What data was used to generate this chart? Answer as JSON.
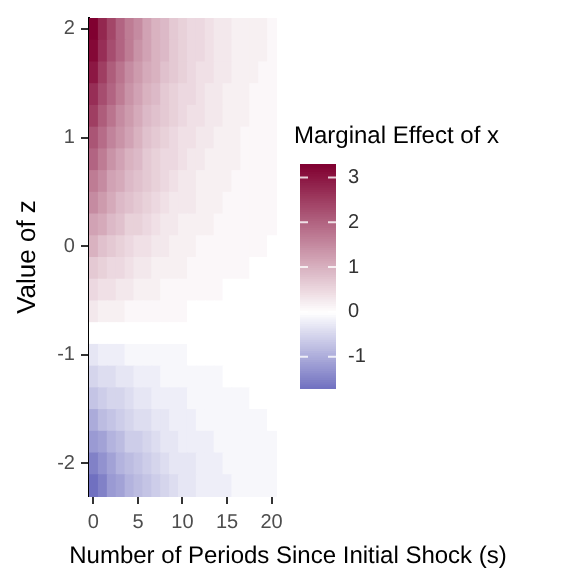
{
  "chart_data": {
    "type": "heatmap",
    "xlabel": "Number of Periods Since Initial Shock (s)",
    "ylabel": "Value of z",
    "clabel": "Marginal Effect of x",
    "categories": [
      "0",
      null,
      null,
      null,
      null,
      "5",
      null,
      null,
      null,
      null,
      "10",
      null,
      null,
      null,
      null,
      "15",
      null,
      null,
      null,
      null,
      "20"
    ],
    "y_categories": [
      "2",
      null,
      null,
      null,
      null,
      "1",
      null,
      null,
      null,
      null,
      "0",
      null,
      null,
      null,
      null,
      "-1",
      null,
      null,
      null,
      null,
      "-2",
      null
    ],
    "cells": [
      [
        3.3,
        2.8,
        2.4,
        2.0,
        1.7,
        1.5,
        1.2,
        1.0,
        0.9,
        0.7,
        0.6,
        0.5,
        0.5,
        0.4,
        0.3,
        0.3,
        0.2,
        0.2,
        0.2,
        0.2,
        0.1
      ],
      [
        3.2,
        2.7,
        2.3,
        2.0,
        1.7,
        1.4,
        1.2,
        1.0,
        0.9,
        0.7,
        0.6,
        0.5,
        0.5,
        0.4,
        0.3,
        0.3,
        0.2,
        0.2,
        0.2,
        0.2,
        0.1
      ],
      [
        3.0,
        2.5,
        2.1,
        1.8,
        1.5,
        1.3,
        1.1,
        1.0,
        0.8,
        0.7,
        0.6,
        0.5,
        0.4,
        0.4,
        0.3,
        0.3,
        0.2,
        0.2,
        0.2,
        0.1,
        0.1
      ],
      [
        2.7,
        2.3,
        2.0,
        1.7,
        1.4,
        1.2,
        1.0,
        0.9,
        0.7,
        0.6,
        0.5,
        0.5,
        0.4,
        0.3,
        0.3,
        0.2,
        0.2,
        0.2,
        0.1,
        0.1,
        0.1
      ],
      [
        2.5,
        2.1,
        1.8,
        1.5,
        1.3,
        1.1,
        0.9,
        0.8,
        0.7,
        0.6,
        0.5,
        0.4,
        0.4,
        0.3,
        0.3,
        0.2,
        0.2,
        0.2,
        0.1,
        0.1,
        0.1
      ],
      [
        2.2,
        1.9,
        1.6,
        1.4,
        1.2,
        1.0,
        0.8,
        0.7,
        0.6,
        0.5,
        0.4,
        0.4,
        0.3,
        0.3,
        0.2,
        0.2,
        0.2,
        0.1,
        0.1,
        0.1,
        0.1
      ],
      [
        2.0,
        1.7,
        1.4,
        1.2,
        1.0,
        0.9,
        0.7,
        0.6,
        0.5,
        0.5,
        0.4,
        0.3,
        0.3,
        0.2,
        0.2,
        0.2,
        0.2,
        0.1,
        0.1,
        0.1,
        0.1
      ],
      [
        1.7,
        1.5,
        1.2,
        1.1,
        0.9,
        0.8,
        0.7,
        0.6,
        0.5,
        0.4,
        0.3,
        0.3,
        0.2,
        0.2,
        0.2,
        0.2,
        0.1,
        0.1,
        0.1,
        0.1,
        0.1
      ],
      [
        1.5,
        1.3,
        1.1,
        0.9,
        0.8,
        0.7,
        0.6,
        0.5,
        0.4,
        0.3,
        0.3,
        0.3,
        0.2,
        0.2,
        0.2,
        0.1,
        0.1,
        0.1,
        0.1,
        0.1,
        0.1
      ],
      [
        1.2,
        1.1,
        0.9,
        0.8,
        0.6,
        0.6,
        0.5,
        0.4,
        0.3,
        0.3,
        0.2,
        0.2,
        0.2,
        0.2,
        0.1,
        0.1,
        0.1,
        0.1,
        0.1,
        0.1,
        0.1
      ],
      [
        1.0,
        0.8,
        0.7,
        0.6,
        0.5,
        0.4,
        0.4,
        0.3,
        0.3,
        0.2,
        0.2,
        0.2,
        0.1,
        0.1,
        0.1,
        0.1,
        0.1,
        0.1,
        0.1,
        0.1,
        0.0
      ],
      [
        0.7,
        0.6,
        0.5,
        0.5,
        0.4,
        0.3,
        0.3,
        0.2,
        0.2,
        0.2,
        0.2,
        0.1,
        0.1,
        0.1,
        0.1,
        0.1,
        0.1,
        0.1,
        0.0,
        0.0,
        0.0
      ],
      [
        0.5,
        0.4,
        0.4,
        0.3,
        0.3,
        0.2,
        0.2,
        0.2,
        0.1,
        0.1,
        0.1,
        0.1,
        0.1,
        0.1,
        0.1,
        0.0,
        0.0,
        0.0,
        0.0,
        0.0,
        0.0
      ],
      [
        0.3,
        0.2,
        0.2,
        0.2,
        0.1,
        0.1,
        0.1,
        0.1,
        0.1,
        0.1,
        0.1,
        0.0,
        0.0,
        0.0,
        0.0,
        0.0,
        0.0,
        0.0,
        0.0,
        0.0,
        0.0
      ],
      [
        0.0,
        0.0,
        0.0,
        0.0,
        0.0,
        0.0,
        0.0,
        0.0,
        0.0,
        0.0,
        0.0,
        0.0,
        0.0,
        0.0,
        0.0,
        0.0,
        0.0,
        0.0,
        0.0,
        0.0,
        0.0
      ],
      [
        -0.3,
        -0.2,
        -0.2,
        -0.2,
        -0.1,
        -0.1,
        -0.1,
        -0.1,
        -0.1,
        -0.1,
        -0.1,
        0.0,
        0.0,
        0.0,
        0.0,
        0.0,
        0.0,
        0.0,
        0.0,
        0.0,
        0.0
      ],
      [
        -0.5,
        -0.4,
        -0.4,
        -0.3,
        -0.3,
        -0.2,
        -0.2,
        -0.2,
        -0.1,
        -0.1,
        -0.1,
        -0.1,
        -0.1,
        -0.1,
        -0.1,
        0.0,
        0.0,
        0.0,
        0.0,
        0.0,
        0.0
      ],
      [
        -0.7,
        -0.6,
        -0.5,
        -0.5,
        -0.4,
        -0.3,
        -0.3,
        -0.2,
        -0.2,
        -0.2,
        -0.2,
        -0.1,
        -0.1,
        -0.1,
        -0.1,
        -0.1,
        -0.1,
        -0.1,
        0.0,
        0.0,
        0.0
      ],
      [
        -1.0,
        -0.8,
        -0.7,
        -0.6,
        -0.5,
        -0.4,
        -0.4,
        -0.3,
        -0.3,
        -0.2,
        -0.2,
        -0.2,
        -0.1,
        -0.1,
        -0.1,
        -0.1,
        -0.1,
        -0.1,
        -0.1,
        -0.1,
        0.0
      ],
      [
        -1.2,
        -1.1,
        -0.9,
        -0.8,
        -0.6,
        -0.6,
        -0.5,
        -0.4,
        -0.3,
        -0.3,
        -0.2,
        -0.2,
        -0.2,
        -0.2,
        -0.1,
        -0.1,
        -0.1,
        -0.1,
        -0.1,
        -0.1,
        -0.1
      ],
      [
        -1.5,
        -1.3,
        -1.1,
        -0.9,
        -0.8,
        -0.7,
        -0.6,
        -0.5,
        -0.4,
        -0.3,
        -0.3,
        -0.3,
        -0.2,
        -0.2,
        -0.2,
        -0.1,
        -0.1,
        -0.1,
        -0.1,
        -0.1,
        -0.1
      ],
      [
        -1.7,
        -1.5,
        -1.2,
        -1.1,
        -0.9,
        -0.8,
        -0.7,
        -0.6,
        -0.5,
        -0.4,
        -0.3,
        -0.3,
        -0.2,
        -0.2,
        -0.2,
        -0.2,
        -0.1,
        -0.1,
        -0.1,
        -0.1,
        -0.1
      ]
    ],
    "clim": [
      -1.7,
      3.3
    ],
    "cticks": [
      -1,
      0,
      1,
      2,
      3
    ]
  }
}
